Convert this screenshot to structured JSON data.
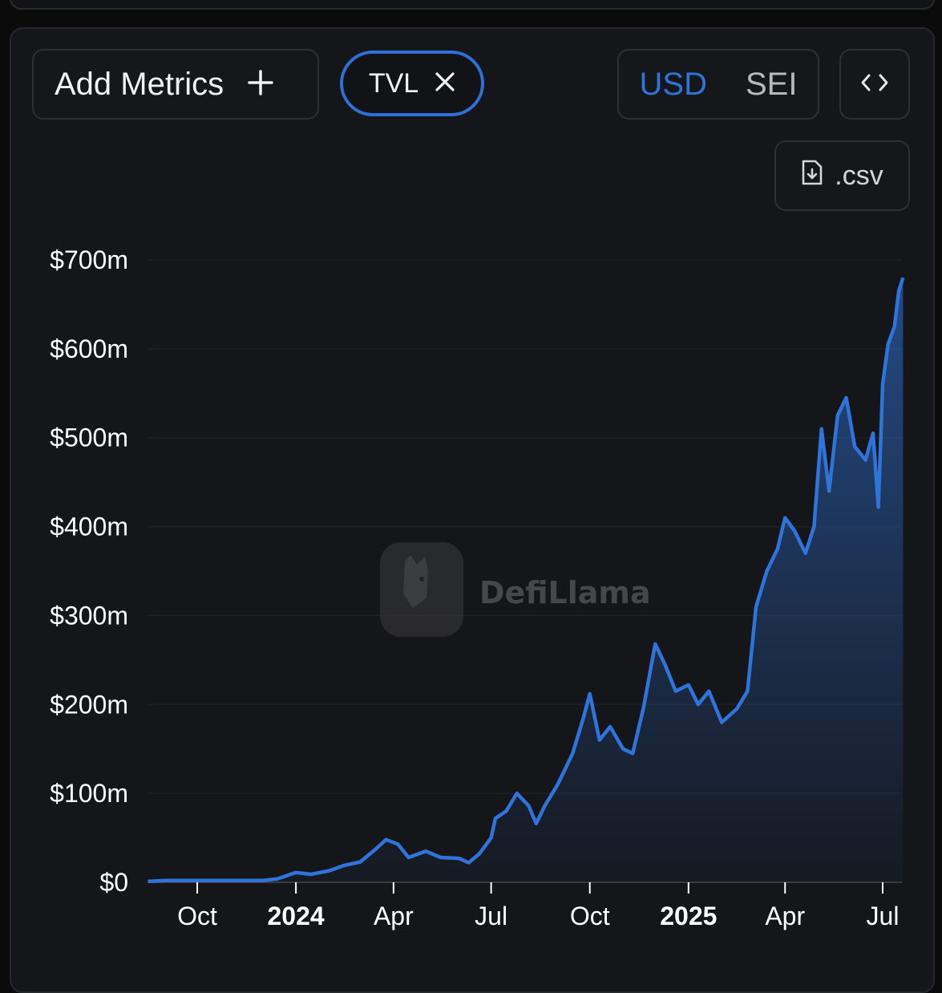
{
  "toolbar": {
    "add_metrics_label": "Add Metrics",
    "add_icon": "plus-icon",
    "metric_chip": "TVL",
    "remove_icon": "close-icon",
    "currency_options": [
      "USD",
      "SEI"
    ],
    "currency_selected": "USD",
    "embed_icon": "code-brackets-icon",
    "csv_label": ".csv",
    "csv_icon": "file-download-icon"
  },
  "watermark": "DefiLlama",
  "colors": {
    "line": "#2f74db",
    "accent": "#2f74db",
    "background": "#151619"
  },
  "chart_data": {
    "type": "area",
    "title": "",
    "xlabel": "",
    "ylabel": "",
    "ylim": [
      0,
      700
    ],
    "y_unit": "$m",
    "y_ticks": [
      "$0",
      "$100m",
      "$200m",
      "$300m",
      "$400m",
      "$500m",
      "$600m",
      "$700m"
    ],
    "x_ticks": [
      {
        "label": "Oct",
        "date": "2023-10-01",
        "bold": false
      },
      {
        "label": "2024",
        "date": "2024-01-01",
        "bold": true
      },
      {
        "label": "Apr",
        "date": "2024-04-01",
        "bold": false
      },
      {
        "label": "Jul",
        "date": "2024-07-01",
        "bold": false
      },
      {
        "label": "Oct",
        "date": "2024-10-01",
        "bold": false
      },
      {
        "label": "2025",
        "date": "2025-01-01",
        "bold": true
      },
      {
        "label": "Apr",
        "date": "2025-04-01",
        "bold": false
      },
      {
        "label": "Jul",
        "date": "2025-07-01",
        "bold": false
      }
    ],
    "grid": true,
    "legend": "none",
    "series": [
      {
        "values": [
          [
            "2023-08-16",
            1
          ],
          [
            "2023-09-01",
            2
          ],
          [
            "2023-10-01",
            2
          ],
          [
            "2023-11-01",
            2
          ],
          [
            "2023-12-01",
            2
          ],
          [
            "2023-12-15",
            4
          ],
          [
            "2024-01-01",
            11
          ],
          [
            "2024-01-15",
            9
          ],
          [
            "2024-02-01",
            13
          ],
          [
            "2024-02-15",
            19
          ],
          [
            "2024-03-01",
            23
          ],
          [
            "2024-03-15",
            37
          ],
          [
            "2024-03-25",
            48
          ],
          [
            "2024-04-05",
            43
          ],
          [
            "2024-04-15",
            28
          ],
          [
            "2024-05-01",
            35
          ],
          [
            "2024-05-15",
            28
          ],
          [
            "2024-06-01",
            27
          ],
          [
            "2024-06-10",
            22
          ],
          [
            "2024-06-20",
            32
          ],
          [
            "2024-07-01",
            50
          ],
          [
            "2024-07-05",
            72
          ],
          [
            "2024-07-15",
            80
          ],
          [
            "2024-07-25",
            100
          ],
          [
            "2024-08-05",
            86
          ],
          [
            "2024-08-12",
            66
          ],
          [
            "2024-08-20",
            86
          ],
          [
            "2024-09-01",
            110
          ],
          [
            "2024-09-15",
            145
          ],
          [
            "2024-09-25",
            185
          ],
          [
            "2024-10-01",
            212
          ],
          [
            "2024-10-10",
            160
          ],
          [
            "2024-10-20",
            175
          ],
          [
            "2024-11-01",
            150
          ],
          [
            "2024-11-10",
            145
          ],
          [
            "2024-11-20",
            196
          ],
          [
            "2024-12-01",
            268
          ],
          [
            "2024-12-10",
            245
          ],
          [
            "2024-12-20",
            215
          ],
          [
            "2025-01-01",
            222
          ],
          [
            "2025-01-10",
            200
          ],
          [
            "2025-01-20",
            215
          ],
          [
            "2025-02-01",
            180
          ],
          [
            "2025-02-15",
            195
          ],
          [
            "2025-02-25",
            215
          ],
          [
            "2025-03-05",
            310
          ],
          [
            "2025-03-15",
            350
          ],
          [
            "2025-03-25",
            375
          ],
          [
            "2025-04-01",
            410
          ],
          [
            "2025-04-10",
            395
          ],
          [
            "2025-04-20",
            370
          ],
          [
            "2025-04-28",
            400
          ],
          [
            "2025-05-05",
            510
          ],
          [
            "2025-05-12",
            440
          ],
          [
            "2025-05-20",
            525
          ],
          [
            "2025-05-28",
            545
          ],
          [
            "2025-06-05",
            490
          ],
          [
            "2025-06-15",
            475
          ],
          [
            "2025-06-22",
            505
          ],
          [
            "2025-06-27",
            422
          ],
          [
            "2025-07-01",
            560
          ],
          [
            "2025-07-06",
            605
          ],
          [
            "2025-07-12",
            625
          ],
          [
            "2025-07-16",
            665
          ],
          [
            "2025-07-20",
            680
          ]
        ]
      }
    ]
  }
}
